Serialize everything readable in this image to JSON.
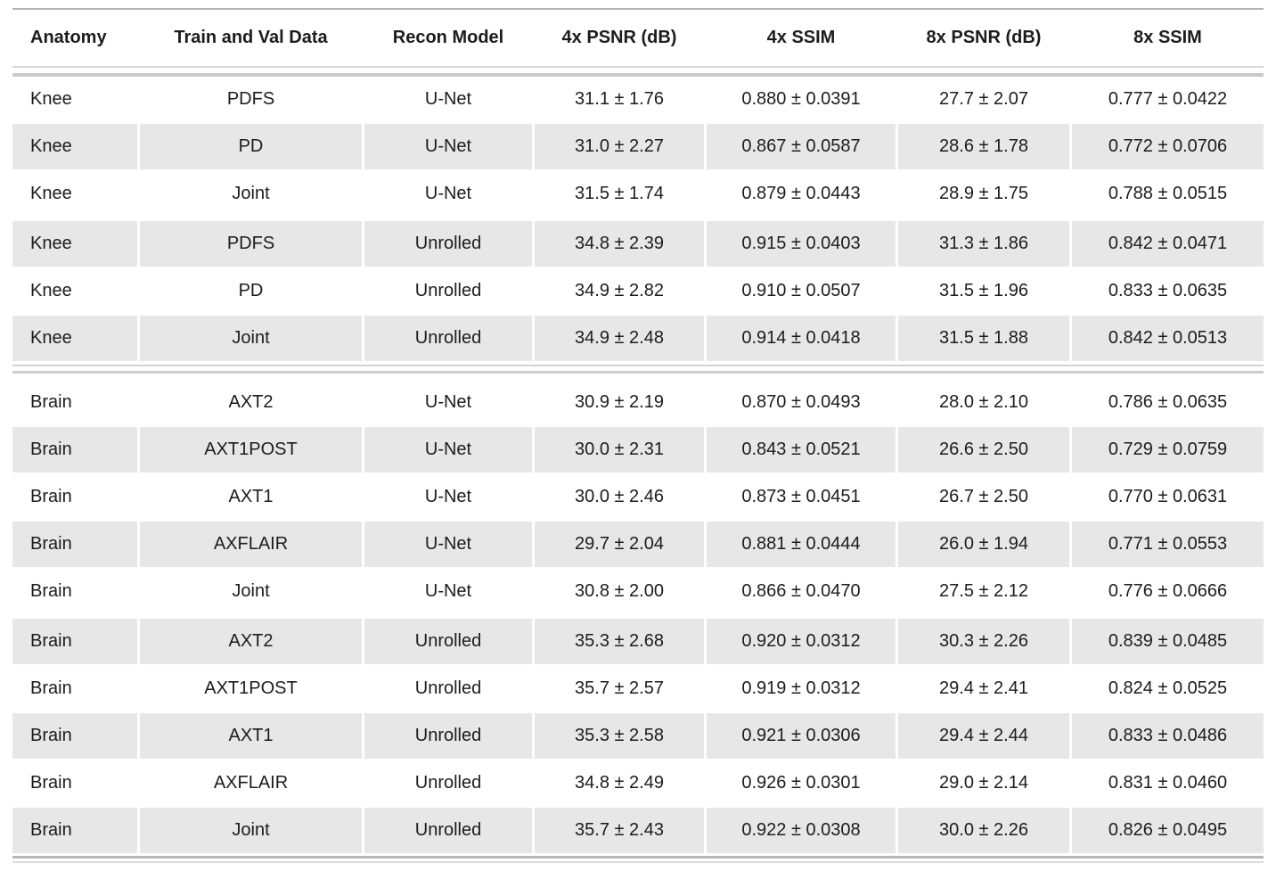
{
  "colors": {
    "background": "#ffffff",
    "text": "#1c1c1c",
    "row_stripe": "#e7e7e7",
    "rule_dark": "#b3b3b3",
    "rule_mid": "#c9c9c9",
    "rule_light": "#d7d7d7"
  },
  "chart_data": {
    "type": "table",
    "columns": [
      "Anatomy",
      "Train and Val Data",
      "Recon Model",
      "4x PSNR (dB)",
      "4x SSIM",
      "8x PSNR (dB)",
      "8x SSIM"
    ],
    "column_keys": [
      "anatomy",
      "train-val-data",
      "recon-model",
      "psnr-4x",
      "ssim-4x",
      "psnr-8x",
      "ssim-8x"
    ],
    "layout_hints": {
      "striped_rows": true,
      "section_divider_between": [
        "Knee",
        "Brain"
      ],
      "alignment": [
        "left",
        "center",
        "center",
        "center",
        "center",
        "center",
        "center"
      ]
    },
    "sections": [
      {
        "name": "Knee",
        "rows": [
          [
            "Knee",
            "PDFS",
            "U-Net",
            "31.1 ± 1.76",
            "0.880 ± 0.0391",
            "27.7 ± 2.07",
            "0.777 ± 0.0422"
          ],
          [
            "Knee",
            "PD",
            "U-Net",
            "31.0 ± 2.27",
            "0.867 ± 0.0587",
            "28.6 ± 1.78",
            "0.772 ± 0.0706"
          ],
          [
            "Knee",
            "Joint",
            "U-Net",
            "31.5 ± 1.74",
            "0.879 ± 0.0443",
            "28.9 ± 1.75",
            "0.788 ± 0.0515"
          ],
          [
            "Knee",
            "PDFS",
            "Unrolled",
            "34.8 ± 2.39",
            "0.915 ± 0.0403",
            "31.3 ± 1.86",
            "0.842 ± 0.0471"
          ],
          [
            "Knee",
            "PD",
            "Unrolled",
            "34.9 ± 2.82",
            "0.910 ± 0.0507",
            "31.5 ± 1.96",
            "0.833 ± 0.0635"
          ],
          [
            "Knee",
            "Joint",
            "Unrolled",
            "34.9 ± 2.48",
            "0.914 ± 0.0418",
            "31.5 ± 1.88",
            "0.842 ± 0.0513"
          ]
        ]
      },
      {
        "name": "Brain",
        "rows": [
          [
            "Brain",
            "AXT2",
            "U-Net",
            "30.9 ± 2.19",
            "0.870 ± 0.0493",
            "28.0 ± 2.10",
            "0.786 ± 0.0635"
          ],
          [
            "Brain",
            "AXT1POST",
            "U-Net",
            "30.0 ± 2.31",
            "0.843 ± 0.0521",
            "26.6 ± 2.50",
            "0.729 ± 0.0759"
          ],
          [
            "Brain",
            "AXT1",
            "U-Net",
            "30.0 ± 2.46",
            "0.873 ± 0.0451",
            "26.7 ± 2.50",
            "0.770 ± 0.0631"
          ],
          [
            "Brain",
            "AXFLAIR",
            "U-Net",
            "29.7 ± 2.04",
            "0.881 ± 0.0444",
            "26.0 ± 1.94",
            "0.771 ± 0.0553"
          ],
          [
            "Brain",
            "Joint",
            "U-Net",
            "30.8 ± 2.00",
            "0.866 ± 0.0470",
            "27.5 ± 2.12",
            "0.776 ± 0.0666"
          ],
          [
            "Brain",
            "AXT2",
            "Unrolled",
            "35.3 ± 2.68",
            "0.920 ± 0.0312",
            "30.3 ± 2.26",
            "0.839 ± 0.0485"
          ],
          [
            "Brain",
            "AXT1POST",
            "Unrolled",
            "35.7 ± 2.57",
            "0.919 ± 0.0312",
            "29.4 ± 2.41",
            "0.824 ± 0.0525"
          ],
          [
            "Brain",
            "AXT1",
            "Unrolled",
            "35.3 ± 2.58",
            "0.921 ± 0.0306",
            "29.4 ± 2.44",
            "0.833 ± 0.0486"
          ],
          [
            "Brain",
            "AXFLAIR",
            "Unrolled",
            "34.8 ± 2.49",
            "0.926 ± 0.0301",
            "29.0 ± 2.14",
            "0.831 ± 0.0460"
          ],
          [
            "Brain",
            "Joint",
            "Unrolled",
            "35.7 ± 2.43",
            "0.922 ± 0.0308",
            "30.0 ± 2.26",
            "0.826 ± 0.0495"
          ]
        ]
      }
    ]
  }
}
